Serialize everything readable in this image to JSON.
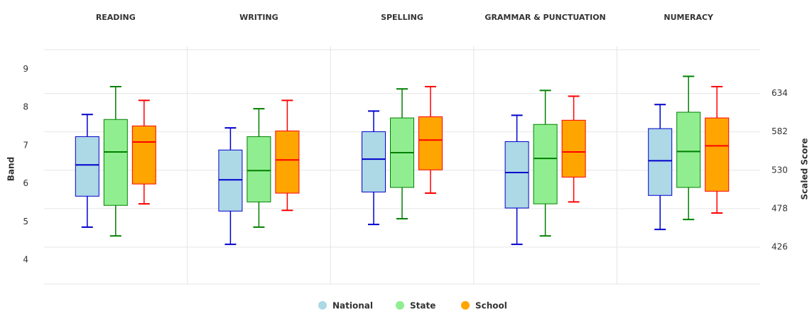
{
  "chart_data": {
    "type": "boxplot",
    "categories": [
      "READING",
      "WRITING",
      "SPELLING",
      "GRAMMAR & PUNCTUATION",
      "NUMERACY"
    ],
    "y_label": "Band",
    "y2_label": "Scaled Score",
    "ylim": [
      3.37,
      9.6
    ],
    "yticks": [
      4,
      5,
      6,
      7,
      8,
      9
    ],
    "y2lim": [
      376,
      698
    ],
    "y2ticks": [
      426,
      478,
      530,
      582,
      634
    ],
    "grid": true,
    "legend": "bottom",
    "series": [
      {
        "name": "National",
        "color": "#add8e6",
        "stroke": "#0000cd",
        "values": [
          [
            4.86,
            5.67,
            6.49,
            7.23,
            7.81
          ],
          [
            4.41,
            5.28,
            6.1,
            6.88,
            7.46
          ],
          [
            4.93,
            5.78,
            6.64,
            7.36,
            7.9
          ],
          [
            4.41,
            5.36,
            6.29,
            7.1,
            7.79
          ],
          [
            4.8,
            5.69,
            6.6,
            7.44,
            8.07
          ]
        ]
      },
      {
        "name": "State",
        "color": "#90ee90",
        "stroke": "#008000",
        "values": [
          [
            4.63,
            5.43,
            6.83,
            7.68,
            8.54
          ],
          [
            4.86,
            5.52,
            6.34,
            7.23,
            7.96
          ],
          [
            5.08,
            5.9,
            6.81,
            7.72,
            8.48
          ],
          [
            4.63,
            5.47,
            6.66,
            7.55,
            8.44
          ],
          [
            5.06,
            5.9,
            6.84,
            7.87,
            8.81
          ]
        ]
      },
      {
        "name": "School",
        "color": "#ffa500",
        "stroke": "#ff0000",
        "values": [
          [
            5.47,
            5.99,
            7.09,
            7.51,
            8.18
          ],
          [
            5.3,
            5.75,
            6.62,
            7.38,
            8.18
          ],
          [
            5.75,
            6.36,
            7.14,
            7.75,
            8.54
          ],
          [
            5.52,
            6.17,
            6.83,
            7.66,
            8.29
          ],
          [
            5.23,
            5.8,
            6.99,
            7.72,
            8.54
          ]
        ]
      }
    ]
  }
}
